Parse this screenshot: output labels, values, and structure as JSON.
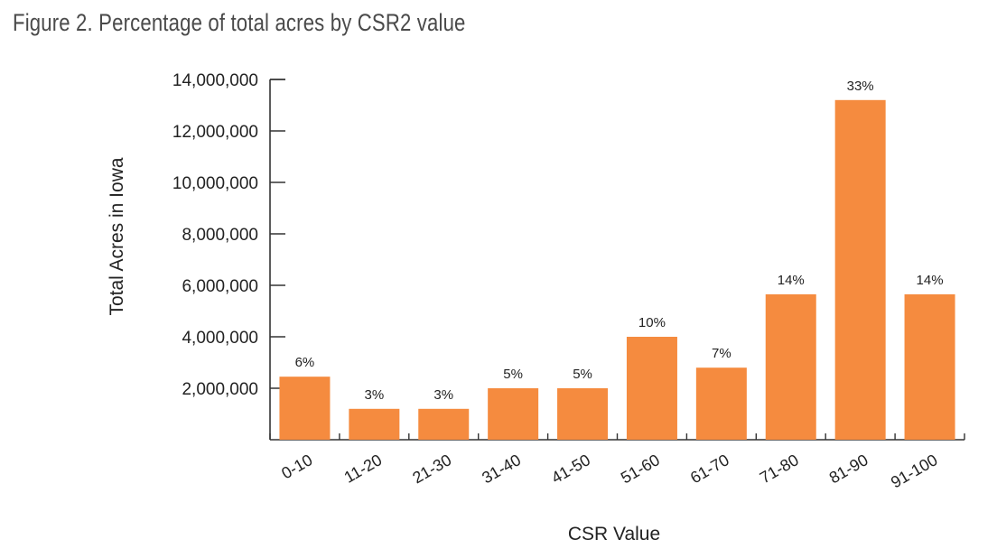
{
  "figure_title": "Figure 2. Percentage of total acres by CSR2 value",
  "colors": {
    "bar": "#f58b3f",
    "axis": "#333333",
    "text": "#222222"
  },
  "chart_data": {
    "type": "bar",
    "title": "Figure 2. Percentage of total acres by CSR2 value",
    "xlabel": "CSR Value",
    "ylabel": "Total Acres in Iowa",
    "ylim": [
      0,
      14000000
    ],
    "yticks": [
      2000000,
      4000000,
      6000000,
      8000000,
      10000000,
      12000000,
      14000000
    ],
    "ytick_labels": [
      "2,000,000",
      "4,000,000",
      "6,000,000",
      "8,000,000",
      "10,000,000",
      "12,000,000",
      "14,000,000"
    ],
    "categories": [
      "0-10",
      "11-20",
      "21-30",
      "31-40",
      "41-50",
      "51-60",
      "61-70",
      "71-80",
      "81-90",
      "91-100"
    ],
    "values": [
      2450000,
      1200000,
      1200000,
      2000000,
      2000000,
      4000000,
      2800000,
      5650000,
      13200000,
      5650000
    ],
    "data_labels": [
      "6%",
      "3%",
      "3%",
      "5%",
      "5%",
      "10%",
      "7%",
      "14%",
      "33%",
      "14%"
    ],
    "grid": false,
    "legend": "none"
  }
}
